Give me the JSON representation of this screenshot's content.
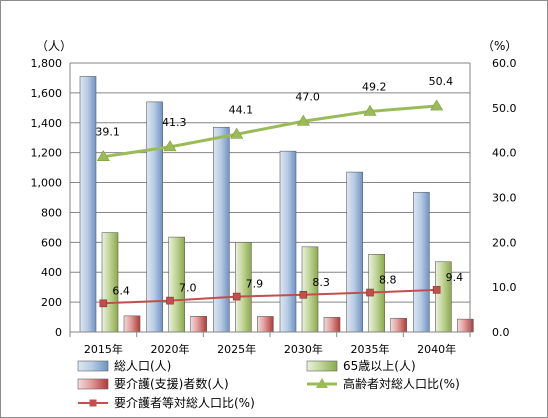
{
  "chart_data": {
    "type": "bar",
    "categories": [
      "2015年",
      "2020年",
      "2025年",
      "2030年",
      "2035年",
      "2040年"
    ],
    "y_left_unit": "（人）",
    "y_right_unit": "（%）",
    "y_left_ticks": [
      "0",
      "200",
      "400",
      "600",
      "800",
      "1,000",
      "1,200",
      "1,400",
      "1,600",
      "1,800"
    ],
    "y_right_ticks": [
      "0.0",
      "10.0",
      "20.0",
      "30.0",
      "40.0",
      "50.0",
      "60.0"
    ],
    "ylim_left": [
      0,
      1800
    ],
    "ylim_right": [
      0,
      60
    ],
    "grid": true,
    "legend_position": "bottom",
    "series": [
      {
        "name": "総人口(人)",
        "kind": "bar",
        "axis": "left",
        "color": "#4f81bd",
        "values": [
          1710,
          1540,
          1370,
          1210,
          1070,
          935
        ]
      },
      {
        "name": "65歳以上(人)",
        "kind": "bar",
        "axis": "left",
        "color": "#9bbb59",
        "values": [
          665,
          635,
          600,
          570,
          520,
          470
        ]
      },
      {
        "name": "要介護(支援)者数(人)",
        "kind": "bar",
        "axis": "left",
        "color": "#c0504d",
        "values": [
          108,
          105,
          104,
          98,
          92,
          86
        ]
      },
      {
        "name": "高齢者対総人口比(%)",
        "kind": "line",
        "axis": "right",
        "color": "#9bbb59",
        "values": [
          39.1,
          41.3,
          44.1,
          47.0,
          49.2,
          50.4
        ],
        "labels": [
          "39.1",
          "41.3",
          "44.1",
          "47.0",
          "49.2",
          "50.4"
        ]
      },
      {
        "name": "要介護者等対総人口比(%)",
        "kind": "line",
        "axis": "right",
        "color": "#c0504d",
        "values": [
          6.4,
          7.0,
          7.9,
          8.3,
          8.8,
          9.4
        ],
        "labels": [
          "6.4",
          "7.0",
          "7.9",
          "8.3",
          "8.8",
          "9.4"
        ]
      }
    ]
  }
}
